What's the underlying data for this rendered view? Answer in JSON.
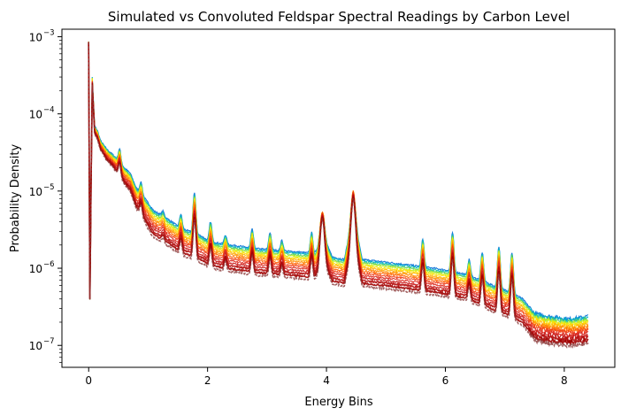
{
  "chart_data": {
    "type": "line",
    "title": "Simulated vs Convoluted Feldspar Spectral Readings by Carbon Level",
    "xlabel": "Energy Bins",
    "ylabel": "Probability Density",
    "x_scale": "linear",
    "y_scale": "log",
    "xlim": [
      -0.45,
      8.85
    ],
    "ylim": [
      5.2e-08,
      0.00125
    ],
    "x_ticks": [
      0,
      2,
      4,
      6,
      8
    ],
    "x_tick_labels": [
      "0",
      "2",
      "4",
      "6",
      "8"
    ],
    "y_ticks": [
      1e-07,
      1e-06,
      1e-05,
      0.0001,
      0.001
    ],
    "y_tick_labels": [
      "10",
      "10",
      "10",
      "10",
      "10"
    ],
    "y_tick_exponents": [
      "−7",
      "−6",
      "−5",
      "−4",
      "−3"
    ],
    "grid": false,
    "legend": "none",
    "series_colors": [
      "#006bd6",
      "#00b4c8",
      "#5ad25a",
      "#c8ef1e",
      "#ffe000",
      "#ffb400",
      "#ff8c00",
      "#ff6400",
      "#f03c14",
      "#dc281e",
      "#c81414",
      "#b40a0a",
      "#a00000",
      "#8b3a3a"
    ],
    "reference_profile": {
      "x": [
        0.0,
        0.02,
        0.06,
        0.1,
        0.15,
        0.2,
        0.3,
        0.4,
        0.5,
        0.6,
        0.7,
        0.8,
        0.9,
        1.0,
        1.1,
        1.2,
        1.3,
        1.4,
        1.5,
        1.6,
        1.7,
        1.8,
        1.9,
        2.0,
        2.2,
        2.4,
        2.6,
        2.8,
        3.0,
        3.2,
        3.4,
        3.6,
        3.8,
        3.95,
        4.1,
        4.3,
        4.45,
        4.6,
        4.8,
        5.0,
        5.2,
        5.4,
        5.6,
        5.8,
        6.0,
        6.15,
        6.3,
        6.5,
        6.7,
        6.9,
        7.1,
        7.3,
        7.5,
        7.7,
        7.9,
        8.1,
        8.3,
        8.4
      ],
      "y": [
        0.00085,
        4e-07,
        0.0003,
        7e-05,
        6e-05,
        4.5e-05,
        3.5e-05,
        3e-05,
        2.5e-05,
        2e-05,
        1.7e-05,
        1.1e-05,
        9e-06,
        7e-06,
        5.5e-06,
        5e-06,
        4.5e-06,
        4e-06,
        3.5e-06,
        3.2e-06,
        3e-06,
        2.8e-06,
        2.6e-06,
        2.3e-06,
        2.1e-06,
        2e-06,
        1.9e-06,
        1.8e-06,
        1.75e-06,
        1.7e-06,
        1.65e-06,
        1.6e-06,
        1.55e-06,
        2.5e-06,
        1.4e-06,
        1.3e-06,
        5e-06,
        1.3e-06,
        1.25e-06,
        1.2e-06,
        1.15e-06,
        1.1e-06,
        1.05e-06,
        1e-06,
        9.5e-07,
        9e-07,
        8.5e-07,
        7.5e-07,
        6.5e-07,
        5.5e-07,
        5e-07,
        4e-07,
        2.6e-07,
        2.4e-07,
        2.3e-07,
        2.2e-07,
        2.3e-07,
        2.4e-07
      ],
      "peaks": [
        {
          "x": 0.52,
          "y": 3.5e-05
        },
        {
          "x": 0.88,
          "y": 1.3e-05
        },
        {
          "x": 1.25,
          "y": 5.5e-06
        },
        {
          "x": 1.55,
          "y": 5e-06
        },
        {
          "x": 1.78,
          "y": 9.5e-06
        },
        {
          "x": 2.05,
          "y": 4e-06
        },
        {
          "x": 2.3,
          "y": 2.7e-06
        },
        {
          "x": 2.75,
          "y": 3.2e-06
        },
        {
          "x": 3.05,
          "y": 2.9e-06
        },
        {
          "x": 3.25,
          "y": 2.3e-06
        },
        {
          "x": 3.75,
          "y": 2.9e-06
        },
        {
          "x": 3.93,
          "y": 5e-06
        },
        {
          "x": 4.45,
          "y": 9.5e-06
        },
        {
          "x": 5.62,
          "y": 2.4e-06
        },
        {
          "x": 6.12,
          "y": 2.9e-06
        },
        {
          "x": 6.4,
          "y": 1.3e-06
        },
        {
          "x": 6.62,
          "y": 1.6e-06
        },
        {
          "x": 6.9,
          "y": 1.9e-06
        },
        {
          "x": 7.12,
          "y": 1.6e-06
        }
      ]
    }
  }
}
